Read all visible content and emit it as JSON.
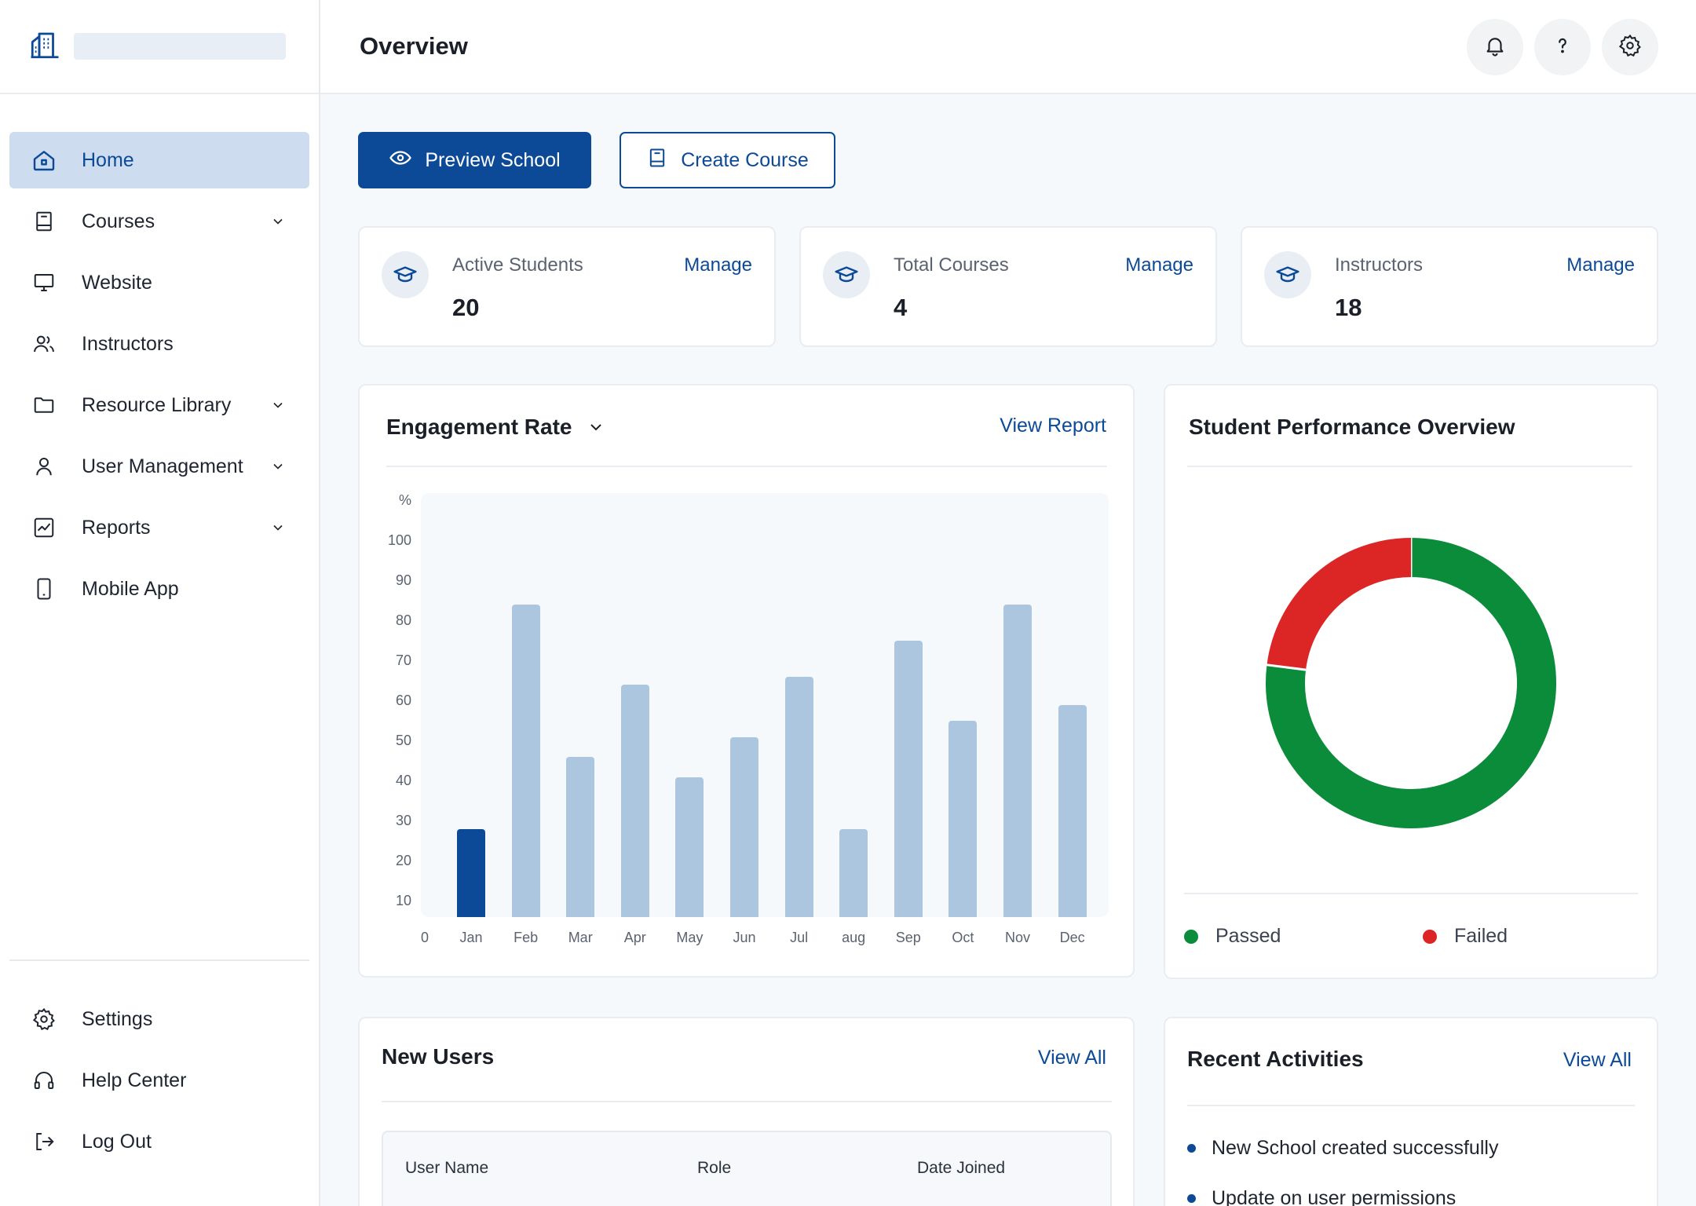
{
  "header": {
    "title": "Overview"
  },
  "sidebar": {
    "items": [
      {
        "label": "Home",
        "icon": "home-icon",
        "active": true,
        "has_chevron": false
      },
      {
        "label": "Courses",
        "icon": "book-icon",
        "has_chevron": true
      },
      {
        "label": "Website",
        "icon": "monitor-icon",
        "has_chevron": false
      },
      {
        "label": "Instructors",
        "icon": "users-icon",
        "has_chevron": false
      },
      {
        "label": "Resource Library",
        "icon": "folder-icon",
        "has_chevron": true
      },
      {
        "label": "User Management",
        "icon": "user-icon",
        "has_chevron": true
      },
      {
        "label": "Reports",
        "icon": "chart-line-icon",
        "has_chevron": true
      },
      {
        "label": "Mobile App",
        "icon": "phone-icon",
        "has_chevron": false
      }
    ],
    "bottom": [
      {
        "label": "Settings",
        "icon": "gear-icon"
      },
      {
        "label": "Help Center",
        "icon": "headset-icon"
      },
      {
        "label": "Log Out",
        "icon": "logout-icon"
      }
    ]
  },
  "actions": {
    "preview_label": "Preview School",
    "create_label": "Create Course"
  },
  "stats": [
    {
      "label": "Active Students",
      "value": "20",
      "link": "Manage"
    },
    {
      "label": "Total Courses",
      "value": "4",
      "link": "Manage"
    },
    {
      "label": "Instructors",
      "value": "18",
      "link": "Manage"
    }
  ],
  "engagement": {
    "title": "Engagement Rate",
    "link": "View Report"
  },
  "performance": {
    "title": "Student Performance Overview",
    "legend": [
      "Passed",
      "Failed"
    ]
  },
  "new_users": {
    "title": "New Users",
    "link": "View All",
    "columns": [
      "User Name",
      "Role",
      "Date Joined"
    ]
  },
  "activities": {
    "title": "Recent Activities",
    "link": "View All",
    "items": [
      "New School created successfully",
      "Update on user permissions"
    ]
  },
  "colors": {
    "primary": "#0c4a97",
    "bar_light": "#acc6e0",
    "passed": "#0a8c3a",
    "failed": "#dc2626"
  },
  "chart_data": [
    {
      "type": "bar",
      "title": "Engagement Rate",
      "ylabel": "%",
      "categories": [
        "Jan",
        "Feb",
        "Mar",
        "Apr",
        "May",
        "Jun",
        "Jul",
        "aug",
        "Sep",
        "Oct",
        "Nov",
        "Dec"
      ],
      "values": [
        22,
        78,
        40,
        58,
        35,
        45,
        60,
        22,
        69,
        49,
        78,
        53
      ],
      "highlight_index": 0,
      "y_ticks": [
        "%",
        "100",
        "90",
        "80",
        "70",
        "60",
        "50",
        "40",
        "30",
        "20",
        "10"
      ],
      "x_origin_label": "0",
      "ylim": [
        0,
        100
      ]
    },
    {
      "type": "pie",
      "title": "Student Performance Overview",
      "labels": [
        "Passed",
        "Failed"
      ],
      "values": [
        77,
        23
      ],
      "donut": true
    }
  ]
}
